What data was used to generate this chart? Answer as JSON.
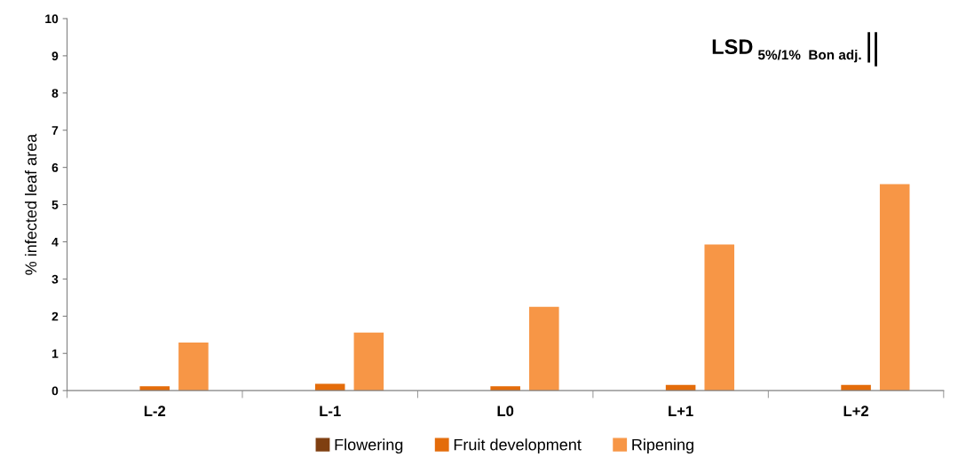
{
  "chart_data": {
    "type": "bar",
    "ylabel": "% infected leaf area",
    "categories": [
      "L-2",
      "L-1",
      "L0",
      "L+1",
      "L+2"
    ],
    "series": [
      {
        "name": "Flowering",
        "color": "#7f3f10",
        "values": [
          0,
          0,
          0,
          0,
          0
        ]
      },
      {
        "name": "Fruit development",
        "color": "#e46c0a",
        "values": [
          0.12,
          0.18,
          0.12,
          0.15,
          0.15
        ]
      },
      {
        "name": "Ripening",
        "color": "#f79646",
        "values": [
          1.29,
          1.56,
          2.25,
          3.93,
          5.55
        ]
      }
    ],
    "ylim": [
      0,
      10
    ],
    "yticks": [
      0,
      1,
      2,
      3,
      4,
      5,
      6,
      7,
      8,
      9,
      10
    ],
    "annotations": [
      "LSD $_{5%/1%  Bon adj.}$"
    ],
    "grid": false,
    "legend": "bottom"
  }
}
